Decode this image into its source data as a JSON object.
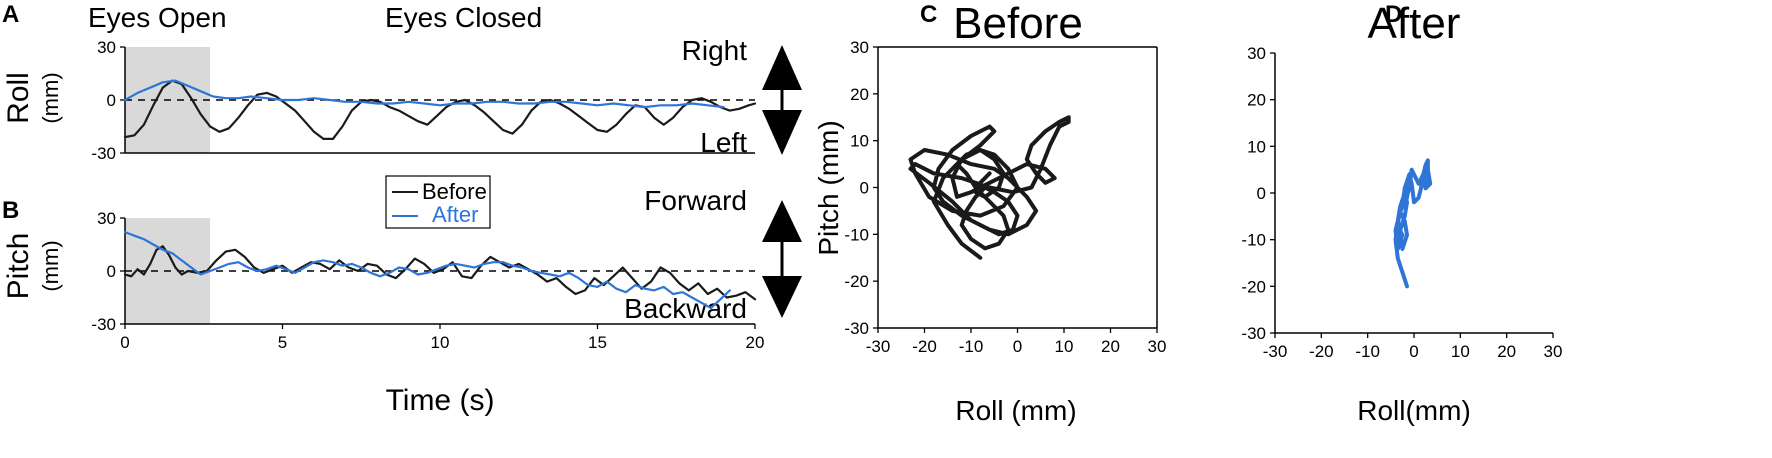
{
  "panels": {
    "a": "A",
    "b": "B",
    "c": "C",
    "d": "D"
  },
  "timeseries": {
    "roll_label": "Roll",
    "pitch_label": "Pitch",
    "unit_label": "(mm)",
    "eyes_open_label": "Eyes Open",
    "eyes_closed_label": "Eyes Closed",
    "eyes_open_range": [
      0,
      2.7
    ],
    "xlabel": "Time (s)",
    "roll_directions": {
      "up": "Right",
      "down": "Left"
    },
    "pitch_directions": {
      "up": "Forward",
      "down": "Backward"
    },
    "legend": {
      "before": "Before",
      "after": "After"
    }
  },
  "scatter": {
    "before_title": "Before",
    "after_title": "After",
    "before_xlabel": "Roll (mm)",
    "after_xlabel": "Roll(mm)",
    "ylabel": "Pitch (mm)"
  },
  "colors": {
    "before": "#1a1a1a",
    "after": "#2f75d6",
    "shade": "#d9d9d9"
  },
  "chart_data": [
    {
      "type": "line",
      "panel": "A",
      "ylabel": "Roll (mm)",
      "xlabel": "",
      "xlim": [
        0,
        20
      ],
      "ylim": [
        -30,
        30
      ],
      "xticks": [
        0,
        5,
        10,
        15,
        20
      ],
      "yticks": [
        -30,
        0,
        30
      ],
      "series": [
        {
          "name": "Before",
          "x": [
            0,
            0.3,
            0.6,
            0.9,
            1.2,
            1.5,
            1.8,
            2.1,
            2.4,
            2.7,
            3.0,
            3.3,
            3.6,
            3.9,
            4.2,
            4.5,
            4.8,
            5.1,
            5.4,
            5.7,
            6.0,
            6.3,
            6.6,
            6.9,
            7.2,
            7.5,
            7.8,
            8.1,
            8.4,
            8.7,
            9.0,
            9.3,
            9.6,
            9.9,
            10.2,
            10.5,
            10.8,
            11.1,
            11.4,
            11.7,
            12.0,
            12.3,
            12.6,
            12.9,
            13.2,
            13.5,
            13.8,
            14.1,
            14.4,
            14.7,
            15.0,
            15.3,
            15.6,
            15.9,
            16.2,
            16.5,
            16.8,
            17.1,
            17.4,
            17.7,
            18.0,
            18.3,
            18.6,
            18.9,
            19.2,
            19.5,
            19.8,
            20.0
          ],
          "y": [
            -21,
            -20,
            -14,
            -3,
            7,
            11,
            9,
            1,
            -8,
            -15,
            -18,
            -16,
            -10,
            -3,
            3,
            4,
            2,
            -2,
            -6,
            -12,
            -18,
            -22,
            -22,
            -15,
            -6,
            -1,
            0,
            -1,
            -4,
            -6,
            -9,
            -12,
            -14,
            -9,
            -4,
            -1,
            0,
            -3,
            -7,
            -12,
            -17,
            -19,
            -14,
            -6,
            -1,
            0,
            -2,
            -5,
            -9,
            -13,
            -17,
            -18,
            -14,
            -8,
            -3,
            -4,
            -10,
            -14,
            -10,
            -4,
            0,
            1,
            -1,
            -4,
            -6,
            -5,
            -3,
            -2
          ]
        },
        {
          "name": "After",
          "x": [
            0,
            0.4,
            0.8,
            1.2,
            1.6,
            2.0,
            2.4,
            2.8,
            3.2,
            3.6,
            4.0,
            4.5,
            5.0,
            5.5,
            6.0,
            6.5,
            7.0,
            7.5,
            8.0,
            8.5,
            9.0,
            9.5,
            10.0,
            10.5,
            11.0,
            11.5,
            12.0,
            12.5,
            13.0,
            13.5,
            14.0,
            14.5,
            15.0,
            15.5,
            16.0,
            16.5,
            17.0,
            17.5,
            18.0,
            18.5,
            19.0
          ],
          "y": [
            0,
            4,
            7,
            10,
            11,
            8,
            5,
            2,
            1,
            1,
            2,
            1,
            0,
            0,
            1,
            0,
            -1,
            -1,
            -2,
            -2,
            -1,
            -2,
            -3,
            -2,
            -2,
            -1,
            -1,
            -2,
            -2,
            -1,
            -1,
            -2,
            -3,
            -2,
            -3,
            -4,
            -3,
            -3,
            -2,
            -3,
            -4
          ]
        }
      ]
    },
    {
      "type": "line",
      "panel": "B",
      "ylabel": "Pitch (mm)",
      "xlabel": "Time (s)",
      "xlim": [
        0,
        20
      ],
      "ylim": [
        -30,
        30
      ],
      "xticks": [
        0,
        5,
        10,
        15,
        20
      ],
      "yticks": [
        -30,
        0,
        30
      ],
      "series": [
        {
          "name": "Before",
          "x": [
            0,
            0.2,
            0.4,
            0.6,
            0.8,
            1.0,
            1.2,
            1.4,
            1.6,
            1.8,
            2.0,
            2.3,
            2.6,
            2.9,
            3.2,
            3.5,
            3.8,
            4.1,
            4.4,
            4.7,
            5.0,
            5.3,
            5.6,
            5.9,
            6.2,
            6.5,
            6.8,
            7.1,
            7.4,
            7.7,
            8.0,
            8.3,
            8.6,
            8.9,
            9.2,
            9.5,
            9.8,
            10.1,
            10.4,
            10.7,
            11.0,
            11.3,
            11.6,
            11.9,
            12.2,
            12.5,
            12.8,
            13.1,
            13.4,
            13.7,
            14.0,
            14.3,
            14.6,
            14.9,
            15.2,
            15.5,
            15.8,
            16.1,
            16.4,
            16.7,
            17.0,
            17.3,
            17.6,
            17.9,
            18.2,
            18.5,
            18.8,
            19.1,
            19.4,
            19.7,
            20.0
          ],
          "y": [
            -2,
            -3,
            1,
            -2,
            4,
            12,
            14,
            9,
            2,
            -2,
            0,
            -1,
            0,
            6,
            11,
            12,
            8,
            2,
            -1,
            1,
            3,
            -1,
            2,
            5,
            4,
            1,
            6,
            2,
            0,
            4,
            3,
            -2,
            -4,
            1,
            7,
            4,
            -1,
            1,
            5,
            -3,
            -4,
            3,
            8,
            5,
            2,
            4,
            1,
            -2,
            -6,
            -4,
            -9,
            -13,
            -11,
            -4,
            -8,
            -3,
            2,
            -4,
            -10,
            -6,
            2,
            -1,
            -7,
            -11,
            -7,
            -13,
            -10,
            -15,
            -14,
            -12,
            -16
          ]
        },
        {
          "name": "After",
          "x": [
            0,
            0.3,
            0.6,
            0.9,
            1.2,
            1.5,
            1.8,
            2.1,
            2.4,
            2.7,
            3.0,
            3.3,
            3.6,
            3.9,
            4.2,
            4.5,
            4.8,
            5.1,
            5.4,
            5.7,
            6.0,
            6.3,
            6.6,
            6.9,
            7.2,
            7.5,
            7.8,
            8.1,
            8.4,
            8.7,
            9.0,
            9.3,
            9.6,
            9.9,
            10.2,
            10.5,
            10.8,
            11.1,
            11.4,
            11.7,
            12.0,
            12.3,
            12.6,
            12.9,
            13.2,
            13.5,
            13.8,
            14.1,
            14.4,
            14.7,
            15.0,
            15.3,
            15.6,
            15.9,
            16.2,
            16.5,
            16.8,
            17.1,
            17.4,
            17.7,
            18.0,
            18.3,
            18.6,
            18.9,
            19.2
          ],
          "y": [
            22,
            20,
            18,
            15,
            12,
            10,
            6,
            2,
            -2,
            0,
            2,
            4,
            5,
            2,
            0,
            1,
            3,
            1,
            -1,
            2,
            5,
            6,
            5,
            3,
            4,
            2,
            -1,
            -3,
            -1,
            2,
            1,
            -2,
            -1,
            1,
            3,
            4,
            3,
            2,
            4,
            5,
            5,
            3,
            2,
            0,
            -1,
            -2,
            -3,
            -1,
            -4,
            -8,
            -9,
            -6,
            -10,
            -12,
            -8,
            -10,
            -11,
            -9,
            -13,
            -12,
            -15,
            -18,
            -21,
            -16,
            -11
          ]
        }
      ]
    },
    {
      "type": "scatter",
      "panel": "C",
      "title": "Before",
      "xlabel": "Roll (mm)",
      "ylabel": "Pitch (mm)",
      "xlim": [
        -30,
        30
      ],
      "ylim": [
        -30,
        30
      ],
      "xticks": [
        -30,
        -20,
        -10,
        0,
        10,
        20,
        30
      ],
      "yticks": [
        -30,
        -20,
        -10,
        0,
        10,
        20,
        30
      ],
      "series": [
        {
          "name": "Before",
          "x": [
            -8,
            -12,
            -15,
            -18,
            -16,
            -12,
            -8,
            -5,
            -2,
            0,
            -3,
            -8,
            -14,
            -19,
            -22,
            -23,
            -20,
            -15,
            -10,
            -5,
            -2,
            0,
            2,
            4,
            2,
            -2,
            -6,
            -10,
            -14,
            -19,
            -23,
            -22,
            -18,
            -12,
            -6,
            -1,
            3,
            5,
            7,
            9,
            11,
            11,
            9,
            6,
            3,
            2,
            4,
            6,
            8,
            6,
            2,
            -2,
            -6,
            -10,
            -13,
            -14,
            -12,
            -8,
            -5,
            -6,
            -10,
            -14,
            -17,
            -18,
            -16,
            -12,
            -8,
            -4,
            -1,
            0,
            -2,
            -5,
            -7,
            -9,
            -11,
            -12,
            -10,
            -7,
            -4,
            -2,
            -3,
            -6,
            -9,
            -11,
            -13,
            -11,
            -8,
            -5,
            -3,
            -4,
            -7,
            -9,
            -8,
            -6
          ],
          "y": [
            -15,
            -12,
            -8,
            -3,
            2,
            6,
            8,
            7,
            4,
            0,
            -4,
            -6,
            -5,
            -2,
            3,
            6,
            8,
            7,
            5,
            4,
            2,
            0,
            -2,
            -5,
            -8,
            -10,
            -9,
            -7,
            -3,
            1,
            4,
            5,
            3,
            2,
            0,
            -1,
            0,
            4,
            9,
            13,
            14,
            15,
            14,
            12,
            9,
            6,
            3,
            1,
            2,
            4,
            5,
            3,
            1,
            -1,
            -2,
            2,
            6,
            9,
            12,
            13,
            11,
            8,
            4,
            0,
            -3,
            -6,
            -8,
            -10,
            -9,
            -6,
            -3,
            -1,
            0,
            -2,
            -5,
            -8,
            -11,
            -13,
            -12,
            -9,
            -6,
            -3,
            0,
            3,
            5,
            7,
            8,
            6,
            3,
            0,
            -2,
            -1,
            1,
            3
          ]
        }
      ]
    },
    {
      "type": "scatter",
      "panel": "D",
      "title": "After",
      "xlabel": "Roll(mm)",
      "ylabel": "",
      "xlim": [
        -30,
        30
      ],
      "ylim": [
        -30,
        30
      ],
      "xticks": [
        -30,
        -20,
        -10,
        0,
        10,
        20,
        30
      ],
      "yticks": [
        -30,
        -20,
        -10,
        0,
        10,
        20,
        30
      ],
      "series": [
        {
          "name": "After",
          "x": [
            -1.5,
            -2.5,
            -3.5,
            -4,
            -3.5,
            -2.5,
            -3.5,
            -4,
            -3,
            -2,
            -1.5,
            -2.5,
            -3.5,
            -3,
            -2,
            -1,
            -1.5,
            -2.5,
            -2,
            -1,
            -0.5,
            0,
            1,
            1.5,
            2,
            2.5,
            3,
            3,
            2.5,
            3,
            2.5,
            2,
            2.5,
            3.5,
            3,
            2,
            1,
            0.5,
            -0.5,
            -1,
            -2,
            -3,
            -3.5,
            -3,
            -2,
            -1.5,
            -2,
            -3,
            -3.5,
            -3,
            -2.5
          ],
          "y": [
            -20,
            -17,
            -14,
            -10,
            -7,
            -9,
            -12,
            -8,
            -4,
            -6,
            -9,
            -12,
            -7,
            -3,
            0,
            2,
            -1,
            -3,
            1,
            4,
            2,
            -2,
            -1,
            1,
            4,
            6,
            7,
            4,
            1,
            3,
            5,
            3,
            1,
            2,
            5,
            4,
            2,
            3,
            5,
            1,
            -2,
            -4,
            -6,
            -8,
            -5,
            -2,
            0,
            -3,
            -6,
            -9,
            -11
          ]
        }
      ]
    }
  ]
}
